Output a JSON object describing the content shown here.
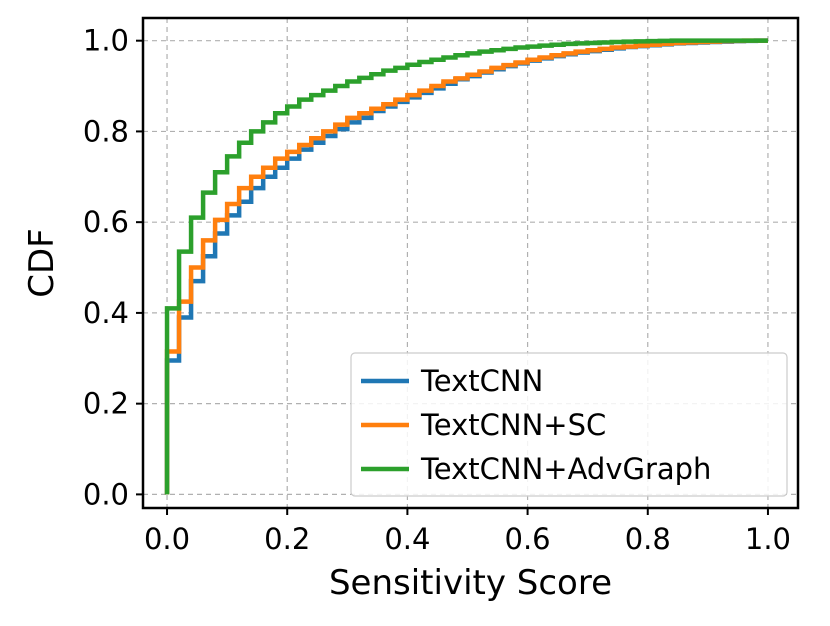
{
  "chart_data": {
    "type": "line",
    "step": true,
    "xlabel": "Sensitivity Score",
    "ylabel": "CDF",
    "xlim": [
      -0.04,
      1.05
    ],
    "ylim": [
      -0.03,
      1.05
    ],
    "xticks": [
      0.0,
      0.2,
      0.4,
      0.6,
      0.8,
      1.0
    ],
    "yticks": [
      0.0,
      0.2,
      0.4,
      0.6,
      0.8,
      1.0
    ],
    "xtick_labels": [
      "0.0",
      "0.2",
      "0.4",
      "0.6",
      "0.8",
      "1.0"
    ],
    "ytick_labels": [
      "0.0",
      "0.2",
      "0.4",
      "0.6",
      "0.8",
      "1.0"
    ],
    "grid": true,
    "legend_position": "bottom-right",
    "series": [
      {
        "name": "TextCNN",
        "color": "#1f77b4",
        "x": [
          0.0,
          0.0,
          0.02,
          0.04,
          0.06,
          0.08,
          0.1,
          0.12,
          0.14,
          0.16,
          0.18,
          0.2,
          0.22,
          0.24,
          0.26,
          0.28,
          0.3,
          0.32,
          0.34,
          0.36,
          0.38,
          0.4,
          0.42,
          0.44,
          0.46,
          0.48,
          0.5,
          0.52,
          0.54,
          0.56,
          0.58,
          0.6,
          0.62,
          0.64,
          0.66,
          0.68,
          0.7,
          0.72,
          0.74,
          0.76,
          0.78,
          0.8,
          0.82,
          0.84,
          0.86,
          0.88,
          0.9,
          0.92,
          0.94,
          0.96,
          0.98,
          1.0
        ],
        "y": [
          0.0,
          0.295,
          0.39,
          0.47,
          0.525,
          0.575,
          0.615,
          0.645,
          0.675,
          0.7,
          0.72,
          0.74,
          0.76,
          0.775,
          0.79,
          0.805,
          0.82,
          0.83,
          0.845,
          0.855,
          0.865,
          0.875,
          0.885,
          0.895,
          0.905,
          0.915,
          0.922,
          0.93,
          0.937,
          0.944,
          0.95,
          0.956,
          0.961,
          0.966,
          0.97,
          0.974,
          0.977,
          0.98,
          0.983,
          0.986,
          0.988,
          0.99,
          0.992,
          0.994,
          0.995,
          0.996,
          0.997,
          0.998,
          0.999,
          0.9995,
          1.0,
          1.0
        ]
      },
      {
        "name": "TextCNN+SC",
        "color": "#ff7f0e",
        "x": [
          0.0,
          0.0,
          0.02,
          0.04,
          0.06,
          0.08,
          0.1,
          0.12,
          0.14,
          0.16,
          0.18,
          0.2,
          0.22,
          0.24,
          0.26,
          0.28,
          0.3,
          0.32,
          0.34,
          0.36,
          0.38,
          0.4,
          0.42,
          0.44,
          0.46,
          0.48,
          0.5,
          0.52,
          0.54,
          0.56,
          0.58,
          0.6,
          0.62,
          0.64,
          0.66,
          0.68,
          0.7,
          0.72,
          0.74,
          0.76,
          0.78,
          0.8,
          0.82,
          0.84,
          0.86,
          0.88,
          0.9,
          0.92,
          0.94,
          0.96,
          0.98,
          1.0
        ],
        "y": [
          0.0,
          0.315,
          0.425,
          0.5,
          0.56,
          0.605,
          0.64,
          0.675,
          0.7,
          0.72,
          0.74,
          0.755,
          0.77,
          0.785,
          0.8,
          0.815,
          0.83,
          0.84,
          0.85,
          0.86,
          0.87,
          0.88,
          0.89,
          0.9,
          0.91,
          0.917,
          0.925,
          0.932,
          0.94,
          0.946,
          0.952,
          0.958,
          0.963,
          0.968,
          0.972,
          0.976,
          0.979,
          0.982,
          0.985,
          0.987,
          0.989,
          0.991,
          0.993,
          0.995,
          0.996,
          0.997,
          0.998,
          0.999,
          0.9995,
          1.0,
          1.0,
          1.0
        ]
      },
      {
        "name": "TextCNN+AdvGraph",
        "color": "#2ca02c",
        "x": [
          0.0,
          0.0,
          0.02,
          0.04,
          0.06,
          0.08,
          0.1,
          0.12,
          0.14,
          0.16,
          0.18,
          0.2,
          0.22,
          0.24,
          0.26,
          0.28,
          0.3,
          0.32,
          0.34,
          0.36,
          0.38,
          0.4,
          0.42,
          0.44,
          0.46,
          0.48,
          0.5,
          0.52,
          0.54,
          0.56,
          0.58,
          0.6,
          0.62,
          0.64,
          0.66,
          0.68,
          0.7,
          0.72,
          0.74,
          0.76,
          0.78,
          0.8,
          0.82,
          0.84,
          0.86,
          0.88,
          0.9,
          0.92,
          0.94,
          0.96,
          0.98,
          1.0
        ],
        "y": [
          0.0,
          0.41,
          0.535,
          0.61,
          0.665,
          0.71,
          0.745,
          0.775,
          0.8,
          0.82,
          0.84,
          0.855,
          0.87,
          0.88,
          0.89,
          0.9,
          0.91,
          0.918,
          0.926,
          0.934,
          0.94,
          0.947,
          0.953,
          0.958,
          0.963,
          0.968,
          0.972,
          0.976,
          0.979,
          0.982,
          0.985,
          0.987,
          0.989,
          0.991,
          0.993,
          0.994,
          0.995,
          0.996,
          0.997,
          0.998,
          0.9985,
          0.999,
          0.9995,
          1.0,
          1.0,
          1.0,
          1.0,
          1.0,
          1.0,
          1.0,
          1.0,
          1.0
        ]
      }
    ]
  }
}
